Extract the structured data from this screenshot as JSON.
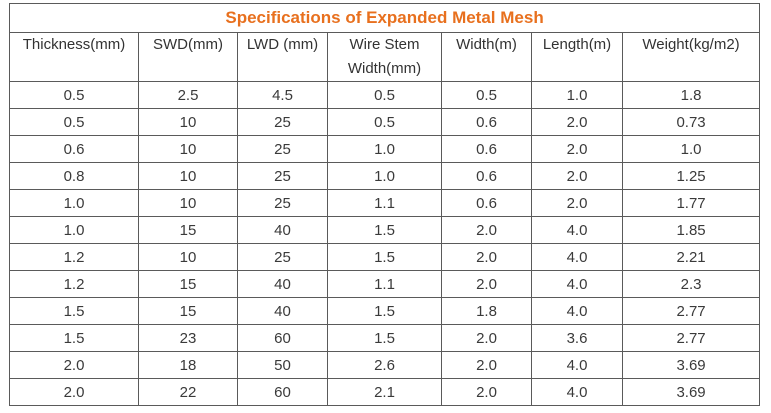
{
  "table": {
    "title": "Specifications of Expanded Metal Mesh",
    "headers": [
      "Thickness(mm)",
      "SWD(mm)",
      "LWD (mm)",
      "Wire Stem Width(mm)",
      "Width(m)",
      "Length(m)",
      "Weight(kg/m2)"
    ],
    "rows": [
      [
        "0.5",
        "2.5",
        "4.5",
        "0.5",
        "0.5",
        "1.0",
        "1.8"
      ],
      [
        "0.5",
        "10",
        "25",
        "0.5",
        "0.6",
        "2.0",
        "0.73"
      ],
      [
        "0.6",
        "10",
        "25",
        "1.0",
        "0.6",
        "2.0",
        "1.0"
      ],
      [
        "0.8",
        "10",
        "25",
        "1.0",
        "0.6",
        "2.0",
        "1.25"
      ],
      [
        "1.0",
        "10",
        "25",
        "1.1",
        "0.6",
        "2.0",
        "1.77"
      ],
      [
        "1.0",
        "15",
        "40",
        "1.5",
        "2.0",
        "4.0",
        "1.85"
      ],
      [
        "1.2",
        "10",
        "25",
        "1.5",
        "2.0",
        "4.0",
        "2.21"
      ],
      [
        "1.2",
        "15",
        "40",
        "1.1",
        "2.0",
        "4.0",
        "2.3"
      ],
      [
        "1.5",
        "15",
        "40",
        "1.5",
        "1.8",
        "4.0",
        "2.77"
      ],
      [
        "1.5",
        "23",
        "60",
        "1.5",
        "2.0",
        "3.6",
        "2.77"
      ],
      [
        "2.0",
        "18",
        "50",
        "2.6",
        "2.0",
        "4.0",
        "3.69"
      ],
      [
        "2.0",
        "22",
        "60",
        "2.1",
        "2.0",
        "4.0",
        "3.69"
      ]
    ]
  }
}
